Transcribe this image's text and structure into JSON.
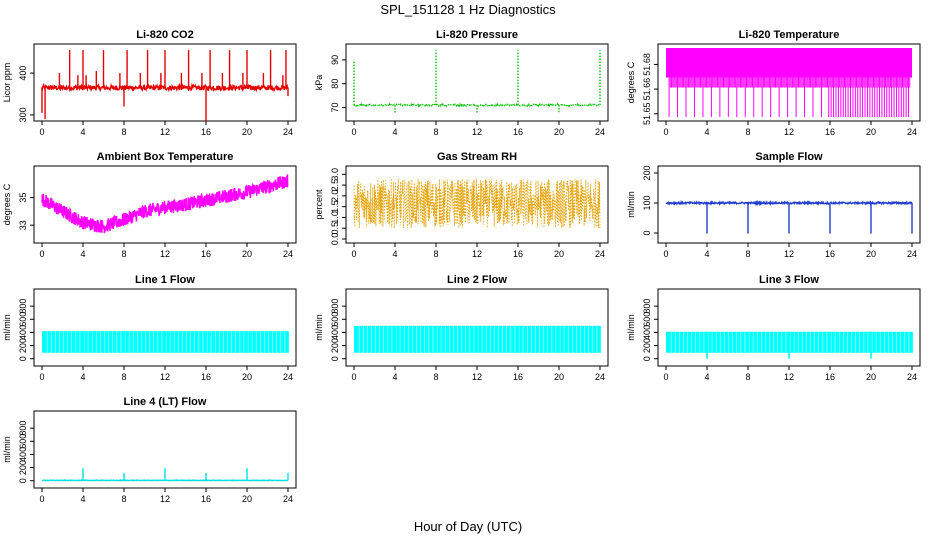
{
  "figure": {
    "title": "SPL_151128  1 Hz Diagnostics",
    "xlabel": "Hour of Day (UTC)"
  },
  "chart_data": [
    {
      "id": "co2",
      "type": "line",
      "title": "Li-820 CO2",
      "ylabel": "Licor ppm",
      "color": "#e60000",
      "style": "solid",
      "xlim": [
        0,
        24
      ],
      "ylim": [
        295,
        460
      ],
      "xticks": [
        0,
        4,
        8,
        12,
        16,
        20,
        24
      ],
      "yticks": [
        300,
        400
      ],
      "baseline": 365,
      "band": 6,
      "spikes": [
        {
          "x": 0.0,
          "y": 305
        },
        {
          "x": 0.3,
          "y": 290
        },
        {
          "x": 1.7,
          "y": 400
        },
        {
          "x": 2.7,
          "y": 455
        },
        {
          "x": 3.5,
          "y": 395
        },
        {
          "x": 4.0,
          "y": 455
        },
        {
          "x": 4.3,
          "y": 395
        },
        {
          "x": 5.3,
          "y": 405
        },
        {
          "x": 6.0,
          "y": 455
        },
        {
          "x": 7.6,
          "y": 400
        },
        {
          "x": 8.0,
          "y": 320
        },
        {
          "x": 8.3,
          "y": 455
        },
        {
          "x": 9.6,
          "y": 400
        },
        {
          "x": 10.3,
          "y": 455
        },
        {
          "x": 11.6,
          "y": 400
        },
        {
          "x": 12.0,
          "y": 455
        },
        {
          "x": 13.6,
          "y": 400
        },
        {
          "x": 14.3,
          "y": 455
        },
        {
          "x": 15.6,
          "y": 400
        },
        {
          "x": 16.0,
          "y": 285
        },
        {
          "x": 16.4,
          "y": 455
        },
        {
          "x": 17.6,
          "y": 400
        },
        {
          "x": 18.3,
          "y": 455
        },
        {
          "x": 19.6,
          "y": 400
        },
        {
          "x": 20.0,
          "y": 455
        },
        {
          "x": 21.6,
          "y": 400
        },
        {
          "x": 22.3,
          "y": 455
        },
        {
          "x": 23.5,
          "y": 395
        },
        {
          "x": 23.8,
          "y": 455
        },
        {
          "x": 24.0,
          "y": 345
        }
      ]
    },
    {
      "id": "pressure",
      "type": "line",
      "title": "Li-820 Pressure",
      "ylabel": "kPa",
      "color": "#00c000",
      "style": "dotted",
      "xlim": [
        0,
        24
      ],
      "ylim": [
        66,
        95
      ],
      "xticks": [
        0,
        4,
        8,
        12,
        16,
        20,
        24
      ],
      "yticks": [
        70,
        80,
        90
      ],
      "baseline": 71,
      "band": 0.4,
      "spikes": [
        {
          "x": 0.0,
          "y": 90
        },
        {
          "x": 4.0,
          "y": 67.5
        },
        {
          "x": 8.0,
          "y": 94
        },
        {
          "x": 12.0,
          "y": 67.5
        },
        {
          "x": 16.0,
          "y": 94
        },
        {
          "x": 20.0,
          "y": 68
        },
        {
          "x": 24.0,
          "y": 94
        }
      ]
    },
    {
      "id": "temp",
      "type": "line",
      "title": "Li-820 Temperature",
      "ylabel": "degrees C",
      "color": "#ff00ff",
      "style": "solid",
      "xlim": [
        0,
        24
      ],
      "ylim": [
        51.648,
        51.69
      ],
      "xticks": [
        0,
        4,
        8,
        12,
        16,
        20,
        24
      ],
      "yticks": [
        51.65,
        51.66
      ],
      "ytick_labels": [
        "51.65",
        "51.66",
        "51.68"
      ],
      "ytick_values": [
        51.65,
        51.665,
        51.68
      ],
      "level_high": 51.69,
      "level_low": 51.672,
      "level_bottom": 51.648
    },
    {
      "id": "ambient",
      "type": "line",
      "title": "Ambient Box Temperature",
      "ylabel": "degrees C",
      "color": "#ff00ff",
      "style": "solid",
      "xlim": [
        0,
        24
      ],
      "ylim": [
        32,
        37
      ],
      "xticks": [
        0,
        4,
        8,
        12,
        16,
        20,
        24
      ],
      "yticks": [
        33,
        35
      ],
      "trend": [
        {
          "x": 0,
          "y": 34.9
        },
        {
          "x": 2,
          "y": 34.0
        },
        {
          "x": 4,
          "y": 33.2
        },
        {
          "x": 6,
          "y": 32.9
        },
        {
          "x": 8,
          "y": 33.4
        },
        {
          "x": 10,
          "y": 34.0
        },
        {
          "x": 12,
          "y": 34.3
        },
        {
          "x": 14,
          "y": 34.5
        },
        {
          "x": 16,
          "y": 34.8
        },
        {
          "x": 18,
          "y": 35.1
        },
        {
          "x": 20,
          "y": 35.4
        },
        {
          "x": 22,
          "y": 35.8
        },
        {
          "x": 24,
          "y": 36.2
        }
      ],
      "band": 0.5
    },
    {
      "id": "rh",
      "type": "line",
      "title": "Gas Stream RH",
      "ylabel": "percent",
      "color": "#e6a000",
      "style": "dotted",
      "xlim": [
        0,
        24
      ],
      "ylim": [
        0,
        3.2
      ],
      "xticks": [
        0,
        4,
        8,
        12,
        16,
        20,
        24
      ],
      "yticks": [
        0.0,
        0.5,
        1.0,
        1.5,
        2.0,
        2.5,
        3.0
      ],
      "ytick_labels": [
        "0.0",
        "0.5",
        "1.0",
        "1.5",
        "2.0",
        "2.5",
        "3.0"
      ],
      "band_low": 0.5,
      "band_high": 2.8
    },
    {
      "id": "sample",
      "type": "line",
      "title": "Sample Flow",
      "ylabel": "ml/min",
      "color": "#1f3fd0",
      "style": "solid",
      "xlim": [
        0,
        24
      ],
      "ylim": [
        -20,
        210
      ],
      "xticks": [
        0,
        4,
        8,
        12,
        16,
        20,
        24
      ],
      "yticks": [
        0,
        100,
        200
      ],
      "baseline": 100,
      "band": 3,
      "spikes": [
        {
          "x": 4.0,
          "y": -2
        },
        {
          "x": 8.0,
          "y": -2
        },
        {
          "x": 12.0,
          "y": -2
        },
        {
          "x": 16.0,
          "y": -2
        },
        {
          "x": 20.0,
          "y": -2
        },
        {
          "x": 24.0,
          "y": -2
        }
      ]
    },
    {
      "id": "line1",
      "type": "area",
      "title": "Line 1 Flow",
      "ylabel": "ml/min",
      "color": "#00ffff",
      "style": "solid",
      "xlim": [
        0,
        24
      ],
      "ylim": [
        -50,
        1000
      ],
      "xticks": [
        0,
        4,
        8,
        12,
        16,
        20,
        24
      ],
      "yticks": [
        0,
        200,
        400,
        600,
        800
      ],
      "band_low": 90,
      "band_high": 420,
      "dips": [
        {
          "x": 4.0,
          "y": 90
        },
        {
          "x": 8.0,
          "y": 90
        },
        {
          "x": 12.0,
          "y": 90
        },
        {
          "x": 16.0,
          "y": 90
        },
        {
          "x": 20.0,
          "y": 90
        },
        {
          "x": 24.0,
          "y": 90
        }
      ]
    },
    {
      "id": "line2",
      "type": "area",
      "title": "Line 2 Flow",
      "ylabel": "ml/min",
      "color": "#00ffff",
      "style": "solid",
      "xlim": [
        0,
        24
      ],
      "ylim": [
        -50,
        1000
      ],
      "xticks": [
        0,
        4,
        8,
        12,
        16,
        20,
        24
      ],
      "yticks": [
        0,
        200,
        400,
        600,
        800
      ],
      "band_low": 90,
      "band_high": 500,
      "dips": [
        {
          "x": 4.0,
          "y": 90
        },
        {
          "x": 8.0,
          "y": 90
        },
        {
          "x": 12.0,
          "y": 90
        },
        {
          "x": 16.0,
          "y": 90
        },
        {
          "x": 20.0,
          "y": 90
        },
        {
          "x": 24.0,
          "y": 90
        }
      ]
    },
    {
      "id": "line3",
      "type": "area",
      "title": "Line 3 Flow",
      "ylabel": "ml/min",
      "color": "#00ffff",
      "style": "solid",
      "xlim": [
        0,
        24
      ],
      "ylim": [
        -50,
        1000
      ],
      "xticks": [
        0,
        4,
        8,
        12,
        16,
        20,
        24
      ],
      "yticks": [
        0,
        200,
        400,
        600,
        800
      ],
      "band_low": 90,
      "band_high": 410,
      "dips": [
        {
          "x": 4.0,
          "y": 0
        },
        {
          "x": 8.0,
          "y": 90
        },
        {
          "x": 12.0,
          "y": 0
        },
        {
          "x": 16.0,
          "y": 90
        },
        {
          "x": 20.0,
          "y": 0
        },
        {
          "x": 24.0,
          "y": 90
        }
      ]
    },
    {
      "id": "line4",
      "type": "line",
      "title": "Line 4 (LT) Flow",
      "ylabel": "ml/min",
      "color": "#00e0e0",
      "style": "solid",
      "xlim": [
        0,
        24
      ],
      "ylim": [
        -50,
        1000
      ],
      "xticks": [
        0,
        4,
        8,
        12,
        16,
        20,
        24
      ],
      "yticks": [
        0,
        200,
        400,
        600,
        800
      ],
      "baseline": 5,
      "band": 4,
      "spikes": [
        {
          "x": 4.0,
          "y": 190
        },
        {
          "x": 8.0,
          "y": 120
        },
        {
          "x": 12.0,
          "y": 190
        },
        {
          "x": 16.0,
          "y": 120
        },
        {
          "x": 20.0,
          "y": 190
        },
        {
          "x": 24.0,
          "y": 120
        }
      ]
    }
  ]
}
